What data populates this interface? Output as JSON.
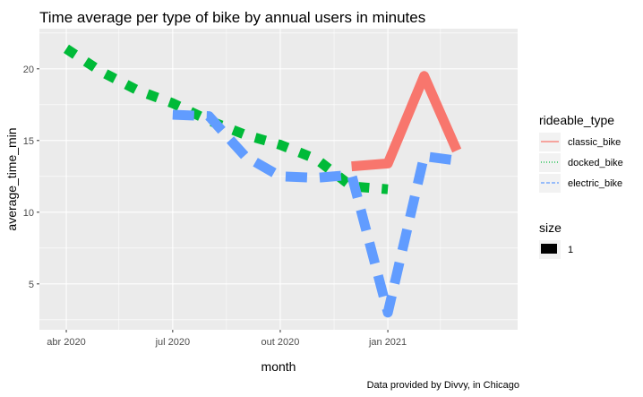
{
  "chart_data": {
    "type": "line",
    "title": "Time average per type of bike by annual users in minutes",
    "xlabel": "month",
    "ylabel": "average_time_min",
    "caption": "Data provided by Divvy, in Chicago",
    "x_ticks": [
      "abr 2020",
      "jul 2020",
      "out 2020",
      "jan 2021"
    ],
    "y_ticks": [
      5,
      10,
      15,
      20
    ],
    "ylim": [
      1.8,
      22.8
    ],
    "x": [
      "2020-04-01",
      "2020-05-01",
      "2020-06-01",
      "2020-07-01",
      "2020-08-01",
      "2020-09-01",
      "2020-10-01",
      "2020-11-01",
      "2020-12-01",
      "2021-01-01",
      "2021-02-01",
      "2021-03-01"
    ],
    "series": [
      {
        "name": "classic_bike",
        "color": "#F8766D",
        "linetype": "solid",
        "values": [
          null,
          null,
          null,
          null,
          null,
          null,
          null,
          null,
          13.2,
          13.4,
          19.5,
          14.3
        ]
      },
      {
        "name": "docked_bike",
        "color": "#00BA38",
        "linetype": "dotted",
        "values": [
          21.4,
          19.8,
          18.5,
          17.6,
          16.4,
          15.4,
          14.7,
          13.7,
          11.8,
          11.6,
          null,
          null
        ]
      },
      {
        "name": "electric_bike",
        "color": "#619CFF",
        "linetype": "dashed",
        "values": [
          null,
          null,
          null,
          16.8,
          16.7,
          13.9,
          12.5,
          12.4,
          12.6,
          3.0,
          13.9,
          13.6
        ]
      }
    ],
    "grid": true,
    "legend_position": "right",
    "legend": {
      "title": "rideable_type",
      "entries": [
        "classic_bike",
        "docked_bike",
        "electric_bike"
      ],
      "size_title": "size",
      "size_entry": "1"
    }
  }
}
